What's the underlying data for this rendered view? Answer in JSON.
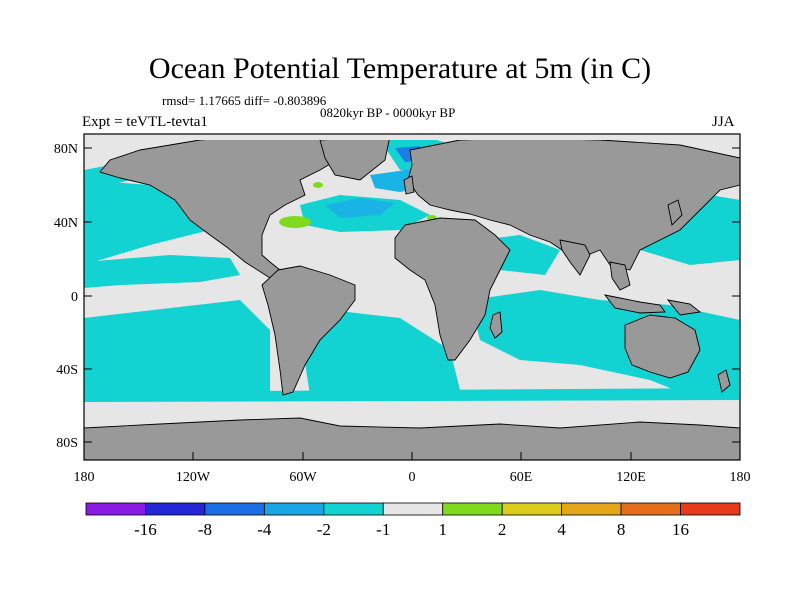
{
  "title": "Ocean Potential Temperature at 5m (in C)",
  "stats_line": "rmsd= 1.17665  diff= -0.803896",
  "period_line": "0820kyr BP - 0000kyr BP",
  "experiment": "Expt = teVTL-tevta1",
  "season": "JJA",
  "colors": {
    "land": "#999999",
    "near_zero": "#e6e6e6",
    "cyan": "#12d2d2",
    "light_blue": "#1ab3e6",
    "mid_blue": "#1a80e6",
    "warm_green": "#80d91a"
  },
  "y_ticks": [
    "80N",
    "40N",
    "0",
    "40S",
    "80S"
  ],
  "x_ticks": [
    "180",
    "120W",
    "60W",
    "0",
    "60E",
    "120E",
    "180"
  ],
  "legend": {
    "labels": [
      "-16",
      "-8",
      "-4",
      "-2",
      "-1",
      "1",
      "2",
      "4",
      "8",
      "16"
    ],
    "bins": [
      {
        "color": "#8c1ae6"
      },
      {
        "color": "#2626d9"
      },
      {
        "color": "#1a6ee6"
      },
      {
        "color": "#1aa6e6"
      },
      {
        "color": "#12d2d2"
      },
      {
        "color": "#e6e6e6"
      },
      {
        "color": "#80d91a"
      },
      {
        "color": "#d9cc1a"
      },
      {
        "color": "#e6a61a"
      },
      {
        "color": "#e66e1a"
      },
      {
        "color": "#e63a1a"
      }
    ]
  }
}
